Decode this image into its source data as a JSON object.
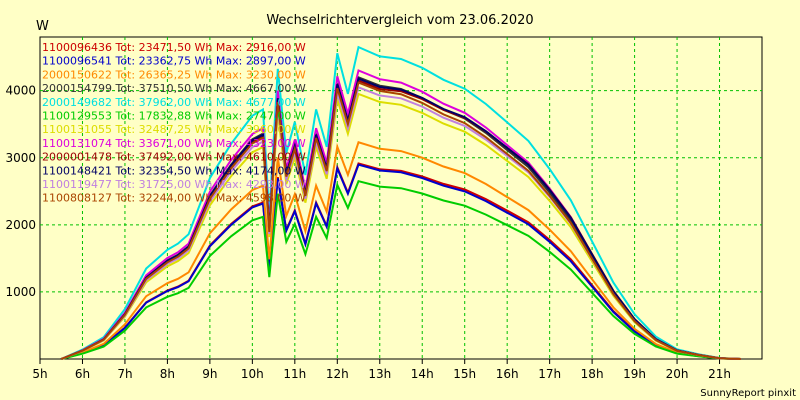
{
  "chart_data": {
    "type": "line",
    "title": "Wechselrichtervergleich vom 23.06.2020",
    "ylabel": "W",
    "credit": "SunnyReport pinxit",
    "grid": true,
    "legend_placement": "top-left",
    "xlim": [
      5,
      22
    ],
    "ylim": [
      0,
      4800
    ],
    "x_ticks": [
      5,
      6,
      7,
      8,
      9,
      10,
      11,
      12,
      13,
      14,
      15,
      16,
      17,
      18,
      19,
      20,
      21
    ],
    "x_tick_labels": [
      "5h",
      "6h",
      "7h",
      "8h",
      "9h",
      "10h",
      "11h",
      "12h",
      "13h",
      "14h",
      "15h",
      "16h",
      "17h",
      "18h",
      "19h",
      "20h",
      "21h"
    ],
    "y_ticks": [
      1000,
      2000,
      3000,
      4000
    ],
    "y_tick_labels": [
      "1000",
      "2000",
      "3000",
      "4000"
    ],
    "x": [
      5.5,
      6,
      6.5,
      7,
      7.5,
      8,
      8.25,
      8.5,
      9,
      9.5,
      10,
      10.25,
      10.4,
      10.6,
      10.8,
      11,
      11.25,
      11.5,
      11.75,
      12,
      12.25,
      12.5,
      13,
      13.5,
      14,
      14.5,
      15,
      15.5,
      16,
      16.5,
      17,
      17.5,
      18,
      18.5,
      19,
      19.5,
      20,
      20.5,
      21,
      21.5
    ],
    "series": [
      {
        "name": "1100096436",
        "legend": "1100096436 Tot: 23471,50 Wh Max: 2916,00 W",
        "color": "#cc0000",
        "base": 2916
      },
      {
        "name": "1100096541",
        "legend": "1100096541 Tot: 23362,75 Wh Max: 2897,00 W",
        "color": "#0000cc",
        "base": 2897
      },
      {
        "name": "2000150622",
        "legend": "2000150622 Tot: 26365,25 Wh Max: 3230,00 W",
        "color": "#ff8800",
        "base": 3230
      },
      {
        "name": "2000154799",
        "legend": "2000154799 Tot: 37510,50 Wh Max: 4667,00 W",
        "color": "#333333",
        "base": 4200
      },
      {
        "name": "2000149682",
        "legend": "2000149682 Tot: 37962,00 Wh Max: 4677,00 W",
        "color": "#00e0e0",
        "base": 4650
      },
      {
        "name": "1100129553",
        "legend": "1100129553 Tot: 17832,88 Wh Max: 2747,00 W",
        "color": "#00cc00",
        "base": 2650
      },
      {
        "name": "1100131055",
        "legend": "1100131055 Tot: 32487,25 Wh Max: 3960,00 W",
        "color": "#dddd00",
        "base": 3950
      },
      {
        "name": "1100131074",
        "legend": "1100131074 Tot: 33671,00 Wh Max: 4323,00 W",
        "color": "#dd00dd",
        "base": 4300
      },
      {
        "name": "2000001478",
        "legend": "2000001478 Tot: 37492,00 Wh Max: 4610,00 W",
        "color": "#990000",
        "base": 4150
      },
      {
        "name": "1100148421",
        "legend": "1100148421 Tot: 32354,50 Wh Max: 4174,00 W",
        "color": "#000066",
        "base": 4180
      },
      {
        "name": "1100119477",
        "legend": "1100119477 Tot: 31725,00 Wh Max: 4293,00 W",
        "color": "#c080e0",
        "base": 4050
      },
      {
        "name": "1100808127",
        "legend": "1100808127 Tot: 32244,00 Wh Max: 4598,00 W",
        "color": "#aa4400",
        "base": 4120
      }
    ]
  }
}
